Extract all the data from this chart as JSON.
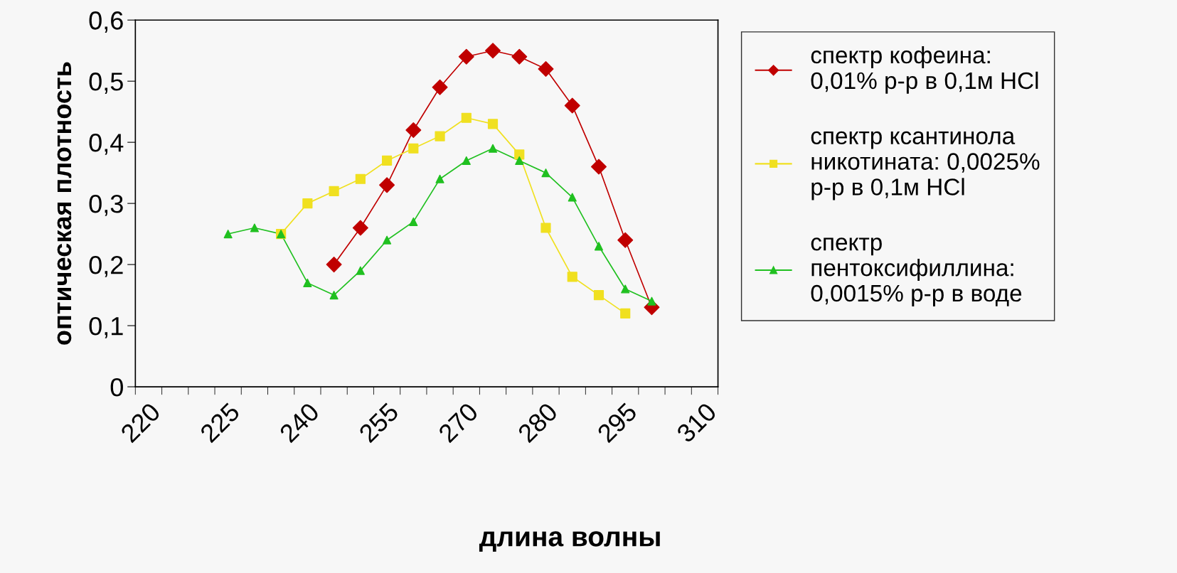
{
  "chart_data": {
    "type": "line",
    "xlabel": "длина волны",
    "ylabel": "оптическая плотность",
    "categories": [
      "220",
      null,
      null,
      "225",
      null,
      null,
      "240",
      null,
      null,
      "255",
      null,
      null,
      "270",
      null,
      null,
      "280",
      null,
      null,
      "295",
      null,
      null,
      "310"
    ],
    "series": [
      {
        "name": "спектр кофеина: 0,01% р-р в 0,1м HCl",
        "color": "#c00000",
        "marker": "diamond",
        "values": [
          null,
          null,
          null,
          null,
          null,
          null,
          null,
          0.2,
          0.26,
          0.33,
          0.42,
          0.49,
          0.54,
          0.55,
          0.54,
          0.52,
          0.46,
          0.36,
          0.24,
          0.13,
          null,
          null
        ]
      },
      {
        "name": "спектр ксантинола никотината: 0,0025% р-р в 0,1м HCl",
        "color": "#f0e020",
        "marker": "square",
        "values": [
          null,
          null,
          null,
          null,
          null,
          0.25,
          0.3,
          0.32,
          0.34,
          0.37,
          0.39,
          0.41,
          0.44,
          0.43,
          0.38,
          0.26,
          0.18,
          0.15,
          0.12,
          null,
          null,
          null
        ]
      },
      {
        "name": "спектр пентоксифиллина: 0,0015% р-р в воде",
        "color": "#20c020",
        "marker": "triangle",
        "values": [
          null,
          null,
          null,
          0.25,
          0.26,
          0.25,
          0.17,
          0.15,
          0.19,
          0.24,
          0.27,
          0.34,
          0.37,
          0.39,
          0.37,
          0.35,
          0.31,
          0.23,
          0.16,
          0.14,
          null,
          null
        ]
      }
    ],
    "ylim": [
      0,
      0.6
    ],
    "yticks": [
      0,
      {
        "value": 0.1,
        "label": "0,1"
      },
      {
        "value": 0.2,
        "label": "0,2"
      },
      {
        "value": 0.3,
        "label": "0,3"
      },
      {
        "value": 0.4,
        "label": "0,4"
      },
      {
        "value": 0.5,
        "label": "0,5"
      },
      {
        "value": 0.6,
        "label": "0,6"
      }
    ],
    "grid": false,
    "legend": "right",
    "line_style": "solid"
  }
}
